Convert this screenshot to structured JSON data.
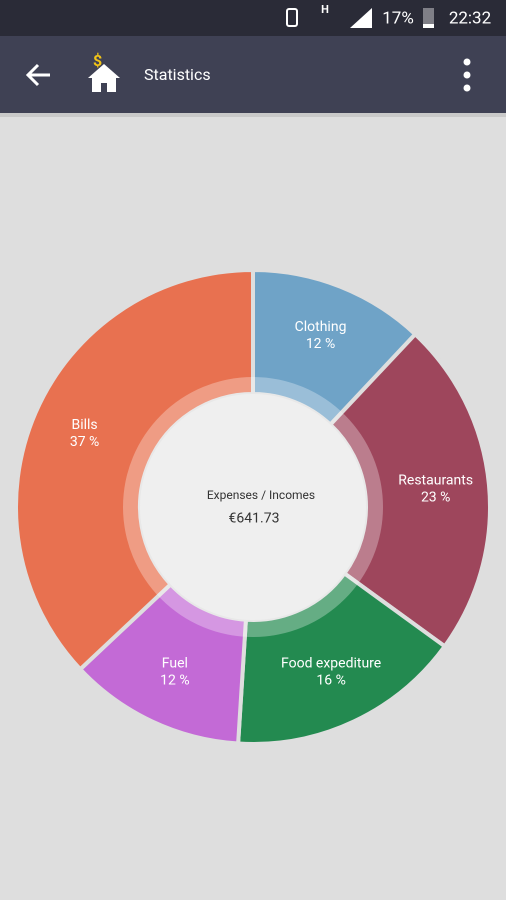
{
  "status_bar": {
    "network": "H",
    "battery": "17%",
    "time": "22:32"
  },
  "app_bar": {
    "title": "Statistics"
  },
  "chart_data": {
    "type": "pie",
    "categories": [
      "Clothing",
      "Restaurants",
      "Food expediture",
      "Fuel",
      "Bills"
    ],
    "values": [
      12,
      23,
      16,
      12,
      37
    ],
    "value_labels": [
      "12 %",
      "23 %",
      "16 %",
      "12 %",
      "37 %"
    ],
    "colors": [
      "#6fa3c7",
      "#9e465c",
      "#238a50",
      "#c36ad6",
      "#e87150"
    ],
    "center_title": "Expenses / Incomes",
    "center_value": "€641.73"
  }
}
